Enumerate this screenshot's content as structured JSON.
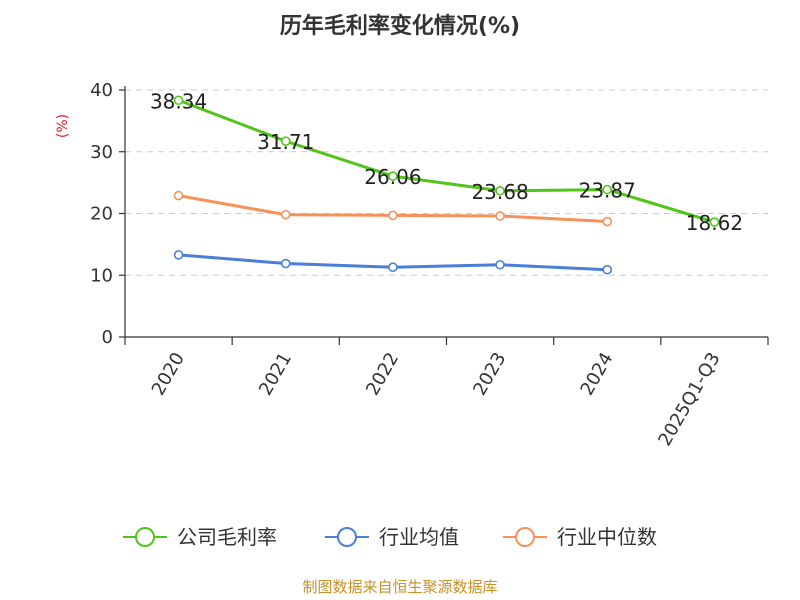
{
  "chart_data": {
    "type": "line",
    "title": "历年毛利率变化情况(%)",
    "ylabel": "(%)",
    "xlabel": "",
    "categories": [
      "2020",
      "2021",
      "2022",
      "2023",
      "2024",
      "2025Q1-Q3"
    ],
    "ylim": [
      0,
      40
    ],
    "yticks": [
      0,
      10,
      20,
      30,
      40
    ],
    "grid": true,
    "legend_position": "bottom",
    "series": [
      {
        "name": "公司毛利率",
        "color": "#52c41a",
        "values": [
          38.34,
          31.71,
          26.06,
          23.68,
          23.87,
          18.62
        ],
        "labels": [
          "38.34",
          "31.71",
          "26.06",
          "23.68",
          "23.87",
          "18.62"
        ]
      },
      {
        "name": "行业均值",
        "color": "#4a7fd9",
        "values": [
          13.3,
          11.9,
          11.3,
          11.7,
          10.9,
          null
        ]
      },
      {
        "name": "行业中位数",
        "color": "#f5925a",
        "values": [
          22.9,
          19.8,
          19.7,
          19.6,
          18.7,
          null
        ]
      }
    ]
  },
  "source_text": "制图数据来自恒生聚源数据库"
}
